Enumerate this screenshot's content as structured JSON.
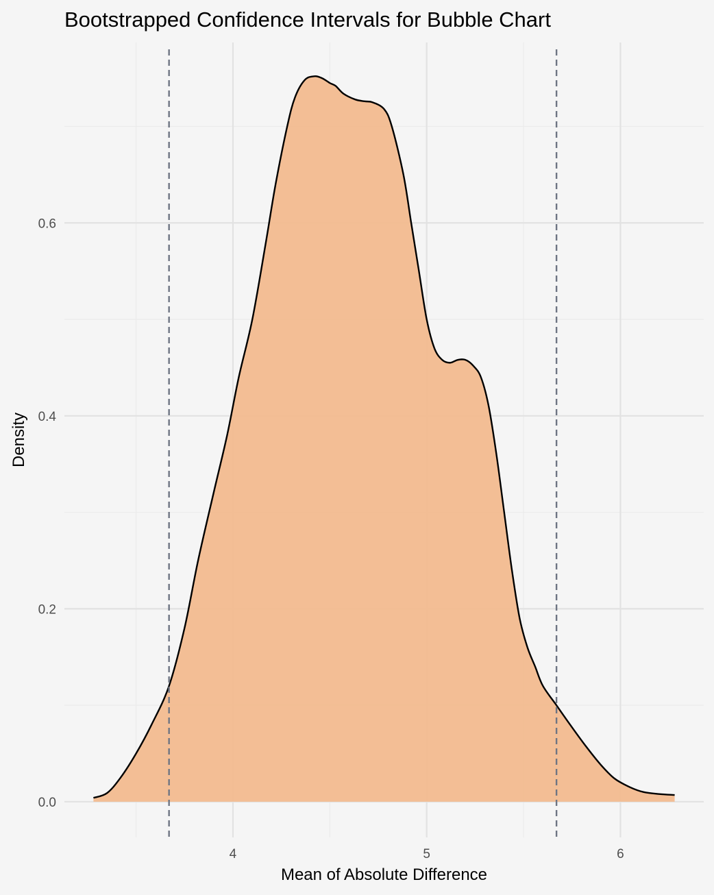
{
  "chart_data": {
    "type": "area",
    "title": "Bootstrapped Confidence Intervals for Bubble Chart",
    "xlabel": "Mean of Absolute Difference",
    "ylabel": "Density",
    "xlim": [
      3.13,
      6.43
    ],
    "ylim": [
      -0.037,
      0.787
    ],
    "x_ticks": [
      4,
      5,
      6
    ],
    "x_tick_labels": [
      "4",
      "5",
      "6"
    ],
    "y_ticks": [
      0.0,
      0.2,
      0.4,
      0.6
    ],
    "y_tick_labels": [
      "0.0",
      "0.2",
      "0.4",
      "0.6"
    ],
    "x_minor_grid": [
      3.5,
      4.5,
      5.5
    ],
    "y_minor_grid": [
      0.1,
      0.3,
      0.5,
      0.7
    ],
    "grid": true,
    "legend": "none",
    "confidence_interval": [
      3.67,
      5.67
    ],
    "series": [
      {
        "x": [
          3.28,
          3.35,
          3.42,
          3.5,
          3.58,
          3.67,
          3.75,
          3.82,
          3.9,
          3.97,
          4.03,
          4.1,
          4.17,
          4.22,
          4.28,
          4.32,
          4.37,
          4.42,
          4.46,
          4.5,
          4.53,
          4.57,
          4.63,
          4.68,
          4.72,
          4.78,
          4.82,
          4.88,
          4.92,
          4.96,
          5.0,
          5.04,
          5.08,
          5.12,
          5.16,
          5.2,
          5.24,
          5.28,
          5.32,
          5.36,
          5.4,
          5.44,
          5.48,
          5.52,
          5.56,
          5.6,
          5.67,
          5.74,
          5.82,
          5.9,
          5.97,
          6.05,
          6.12,
          6.2,
          6.28
        ],
        "y": [
          0.004,
          0.009,
          0.025,
          0.05,
          0.08,
          0.12,
          0.18,
          0.25,
          0.32,
          0.38,
          0.44,
          0.5,
          0.58,
          0.64,
          0.7,
          0.73,
          0.748,
          0.752,
          0.75,
          0.745,
          0.742,
          0.734,
          0.728,
          0.726,
          0.725,
          0.718,
          0.7,
          0.65,
          0.6,
          0.55,
          0.5,
          0.47,
          0.458,
          0.455,
          0.458,
          0.458,
          0.452,
          0.44,
          0.41,
          0.36,
          0.3,
          0.24,
          0.19,
          0.16,
          0.14,
          0.12,
          0.1,
          0.08,
          0.058,
          0.038,
          0.024,
          0.015,
          0.01,
          0.008,
          0.007
        ]
      }
    ],
    "colors": {
      "fill": "#f2bb8f",
      "line": "#000000",
      "ci_line": "#6e7583",
      "grid_major": "#e2e2e2",
      "grid_minor": "#ebebeb",
      "background": "#f5f5f5"
    }
  }
}
